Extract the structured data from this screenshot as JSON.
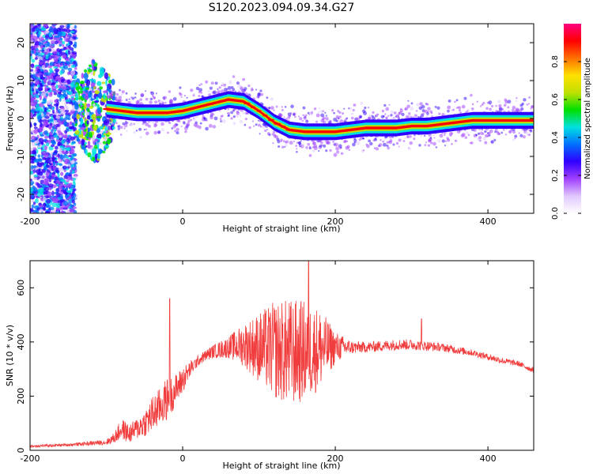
{
  "title": "S120.2023.094.09.34.G27",
  "chart_data": [
    {
      "type": "heatmap",
      "xlabel": "Height of straight line (km)",
      "ylabel": "Frequency (Hz)",
      "xlim": [
        -200,
        460
      ],
      "ylim": [
        -25,
        25
      ],
      "xticks": [
        -200,
        0,
        200,
        400
      ],
      "yticks": [
        -20,
        -10,
        0,
        10,
        20
      ],
      "colorbar": {
        "label": "Normalized spectral amplitude",
        "ticks": [
          "0.0",
          "0.2",
          "0.4",
          "0.6",
          "0.8"
        ],
        "range": [
          0,
          1
        ],
        "colors": [
          "#ffffff",
          "#e0c8ff",
          "#a040ff",
          "#3000ff",
          "#0070ff",
          "#00e0e0",
          "#00e000",
          "#c0e000",
          "#ffe000",
          "#ff7000",
          "#ff0000",
          "#ff0080"
        ]
      },
      "ridge": {
        "x": [
          -100,
          -80,
          -60,
          -40,
          -20,
          0,
          20,
          40,
          60,
          80,
          100,
          120,
          140,
          160,
          180,
          200,
          220,
          240,
          260,
          280,
          300,
          320,
          340,
          360,
          380,
          400,
          420,
          440,
          460
        ],
        "y": [
          2.5,
          2,
          1.5,
          1.5,
          1.5,
          2,
          3,
          4,
          5,
          4.5,
          2,
          -1,
          -3,
          -3.5,
          -3.5,
          -3.5,
          -3,
          -2.5,
          -2.5,
          -2.5,
          -2,
          -2,
          -1.5,
          -1,
          -0.5,
          -0.5,
          -0.5,
          -0.5,
          -0.5
        ]
      },
      "noise_region": {
        "x": [
          -200,
          -140
        ],
        "y": [
          -25,
          25
        ]
      },
      "turbulent_region": {
        "x": [
          -140,
          -90
        ],
        "y": [
          -10,
          17
        ]
      }
    },
    {
      "type": "line",
      "xlabel": "Height of straight line (km)",
      "ylabel": "SNR (10 * v/v)",
      "xlim": [
        -200,
        460
      ],
      "ylim": [
        0,
        700
      ],
      "xticks": [
        -200,
        0,
        200,
        400
      ],
      "yticks": [
        0,
        200,
        400,
        600
      ],
      "color": "#f03c3c",
      "envelope": {
        "x": [
          -200,
          -150,
          -100,
          -90,
          -80,
          -70,
          -60,
          -50,
          -40,
          -30,
          -20,
          -10,
          0,
          10,
          20,
          30,
          40,
          60,
          80,
          100,
          120,
          140,
          160,
          180,
          200,
          220,
          240,
          260,
          280,
          300,
          320,
          340,
          360,
          380,
          400,
          420,
          440,
          460
        ],
        "y": [
          15,
          20,
          30,
          45,
          80,
          60,
          80,
          100,
          130,
          160,
          190,
          220,
          260,
          300,
          330,
          350,
          365,
          380,
          390,
          380,
          370,
          360,
          365,
          375,
          380,
          380,
          380,
          385,
          390,
          390,
          385,
          380,
          370,
          360,
          345,
          330,
          320,
          295
        ],
        "noise_amplitude": [
          5,
          5,
          10,
          20,
          40,
          35,
          40,
          50,
          70,
          70,
          80,
          60,
          50,
          30,
          20,
          20,
          25,
          40,
          80,
          130,
          180,
          200,
          190,
          150,
          60,
          25,
          20,
          20,
          20,
          20,
          18,
          15,
          15,
          12,
          12,
          12,
          10,
          10
        ]
      },
      "spikes": [
        {
          "x": -17,
          "y": 560
        },
        {
          "x": 165,
          "y": 700
        },
        {
          "x": 313,
          "y": 485
        }
      ]
    }
  ]
}
